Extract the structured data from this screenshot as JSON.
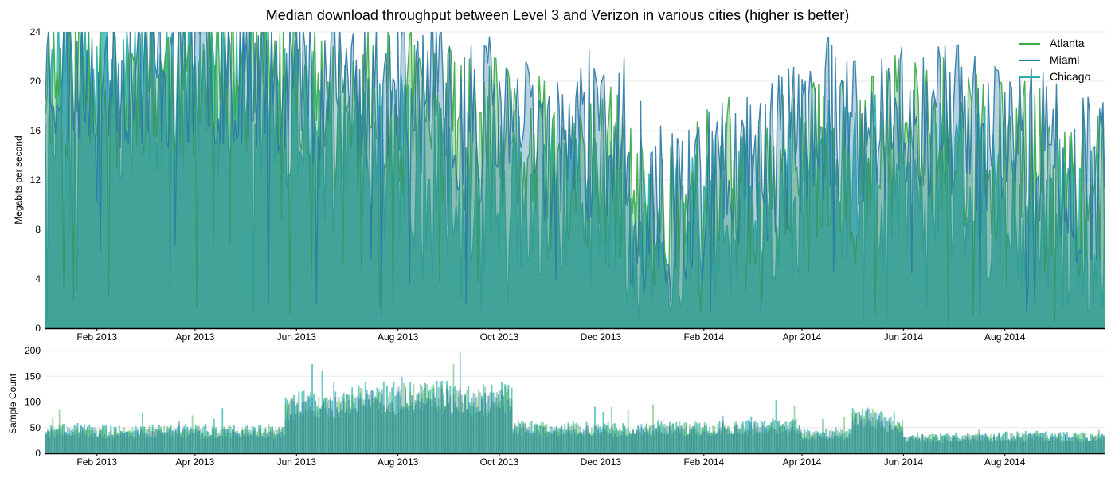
{
  "chart_data": [
    {
      "type": "area",
      "title": "Median download throughput between Level 3 and Verizon in various cities (higher is better)",
      "xlabel": "",
      "ylabel": "Megabits per second",
      "ylim": [
        0,
        24
      ],
      "yticks": [
        0,
        4,
        8,
        12,
        16,
        20,
        24
      ],
      "xlim": [
        "2013-01-01",
        "2014-09-30"
      ],
      "xticks": [
        {
          "date": "2013-02-01",
          "label": "Feb 2013"
        },
        {
          "date": "2013-04-01",
          "label": "Apr 2013"
        },
        {
          "date": "2013-06-01",
          "label": "Jun 2013"
        },
        {
          "date": "2013-08-01",
          "label": "Aug 2013"
        },
        {
          "date": "2013-10-01",
          "label": "Oct 2013"
        },
        {
          "date": "2013-12-01",
          "label": "Dec 2013"
        },
        {
          "date": "2014-02-01",
          "label": "Feb 2014"
        },
        {
          "date": "2014-04-01",
          "label": "Apr 2014"
        },
        {
          "date": "2014-06-01",
          "label": "Jun 2014"
        },
        {
          "date": "2014-08-01",
          "label": "Aug 2014"
        }
      ],
      "grid": true,
      "legend_position": "top-right",
      "series": [
        {
          "name": "Atlanta",
          "color": "#3aa845",
          "x": [
            "2013-01-01",
            "2013-01-15",
            "2013-02-01",
            "2013-02-15",
            "2013-03-01",
            "2013-03-15",
            "2013-04-01",
            "2013-04-15",
            "2013-05-01",
            "2013-05-15",
            "2013-06-01",
            "2013-06-15",
            "2013-07-01",
            "2013-07-15",
            "2013-08-01",
            "2013-08-15",
            "2013-09-01",
            "2013-09-15",
            "2013-10-01",
            "2013-10-15",
            "2013-11-01",
            "2013-11-15",
            "2013-12-01",
            "2013-12-15",
            "2014-01-01",
            "2014-01-15",
            "2014-02-01",
            "2014-02-15",
            "2014-03-01",
            "2014-03-15",
            "2014-04-01",
            "2014-04-15",
            "2014-05-01",
            "2014-05-15",
            "2014-06-01",
            "2014-06-15",
            "2014-07-01",
            "2014-07-15",
            "2014-08-01",
            "2014-08-15",
            "2014-09-01",
            "2014-09-15"
          ],
          "y": [
            21,
            20,
            22,
            19,
            21,
            20,
            21,
            20,
            21,
            20,
            19,
            18,
            17,
            18,
            17,
            18,
            16,
            15,
            15,
            14,
            13,
            12,
            13,
            12,
            8,
            10,
            11,
            12,
            11,
            12,
            13,
            14,
            13,
            14,
            16,
            15,
            15,
            14,
            14,
            13,
            12,
            11
          ]
        },
        {
          "name": "Miami",
          "color": "#2d7aa5",
          "x": [
            "2013-01-01",
            "2013-01-15",
            "2013-02-01",
            "2013-02-15",
            "2013-03-01",
            "2013-03-15",
            "2013-04-01",
            "2013-04-15",
            "2013-05-01",
            "2013-05-15",
            "2013-06-01",
            "2013-06-15",
            "2013-07-01",
            "2013-07-15",
            "2013-08-01",
            "2013-08-15",
            "2013-09-01",
            "2013-09-15",
            "2013-10-01",
            "2013-10-15",
            "2013-11-01",
            "2013-11-15",
            "2013-12-01",
            "2013-12-15",
            "2014-01-01",
            "2014-01-15",
            "2014-02-01",
            "2014-02-15",
            "2014-03-01",
            "2014-03-15",
            "2014-04-01",
            "2014-04-15",
            "2014-05-01",
            "2014-05-15",
            "2014-06-01",
            "2014-06-15",
            "2014-07-01",
            "2014-07-15",
            "2014-08-01",
            "2014-08-15",
            "2014-09-01",
            "2014-09-15"
          ],
          "y": [
            22,
            21,
            22,
            21,
            22,
            21,
            22,
            21,
            22,
            21,
            21,
            20,
            20,
            19,
            20,
            19,
            18,
            17,
            17,
            16,
            15,
            15,
            16,
            15,
            9,
            11,
            12,
            13,
            13,
            14,
            16,
            17,
            15,
            16,
            18,
            17,
            17,
            16,
            17,
            15,
            14,
            12
          ]
        },
        {
          "name": "Chicago",
          "color": "#2bb0ac",
          "x": [
            "2013-01-01",
            "2013-01-15",
            "2013-02-01",
            "2013-02-15",
            "2013-03-01",
            "2013-03-15",
            "2013-04-01",
            "2013-04-15",
            "2013-05-01",
            "2013-05-15",
            "2013-06-01",
            "2013-06-15",
            "2013-07-01",
            "2013-07-15",
            "2013-08-01",
            "2013-08-15",
            "2013-09-01",
            "2013-09-15",
            "2013-10-01",
            "2013-10-15",
            "2013-11-01",
            "2013-11-15",
            "2013-12-01",
            "2013-12-15",
            "2014-01-01",
            "2014-01-15",
            "2014-02-01",
            "2014-02-15",
            "2014-03-01",
            "2014-03-15",
            "2014-04-01",
            "2014-04-15",
            "2014-05-01",
            "2014-05-15",
            "2014-06-01",
            "2014-06-15",
            "2014-07-01",
            "2014-07-15",
            "2014-08-01",
            "2014-08-15",
            "2014-09-01",
            "2014-09-15"
          ],
          "y": [
            20,
            19,
            21,
            18,
            20,
            19,
            20,
            19,
            20,
            19,
            17,
            15,
            14,
            13,
            14,
            13,
            12,
            12,
            12,
            11,
            10,
            10,
            10,
            9,
            7,
            8,
            9,
            9,
            9,
            10,
            11,
            12,
            11,
            12,
            13,
            12,
            12,
            11,
            11,
            10,
            9,
            8
          ]
        }
      ]
    },
    {
      "type": "bar",
      "title": "",
      "xlabel": "",
      "ylabel": "Sample Count",
      "ylim": [
        0,
        200
      ],
      "yticks": [
        0,
        50,
        100,
        150,
        200
      ],
      "xlim": [
        "2013-01-01",
        "2014-09-30"
      ],
      "xticks": [
        {
          "date": "2013-02-01",
          "label": "Feb 2013"
        },
        {
          "date": "2013-04-01",
          "label": "Apr 2013"
        },
        {
          "date": "2013-06-01",
          "label": "Jun 2013"
        },
        {
          "date": "2013-08-01",
          "label": "Aug 2013"
        },
        {
          "date": "2013-10-01",
          "label": "Oct 2013"
        },
        {
          "date": "2013-12-01",
          "label": "Dec 2013"
        },
        {
          "date": "2014-02-01",
          "label": "Feb 2014"
        },
        {
          "date": "2014-04-01",
          "label": "Apr 2014"
        },
        {
          "date": "2014-06-01",
          "label": "Jun 2014"
        },
        {
          "date": "2014-08-01",
          "label": "Aug 2014"
        }
      ],
      "grid": true,
      "series": [
        {
          "name": "Atlanta",
          "color": "#3aa845",
          "x": [
            "2013-01-01",
            "2013-02-01",
            "2013-03-01",
            "2013-04-01",
            "2013-05-01",
            "2013-05-25",
            "2013-06-01",
            "2013-07-01",
            "2013-08-01",
            "2013-09-01",
            "2013-10-01",
            "2013-10-09",
            "2013-11-01",
            "2013-12-01",
            "2014-01-01",
            "2014-02-01",
            "2014-03-01",
            "2014-04-01",
            "2014-05-01",
            "2014-05-20",
            "2014-06-01",
            "2014-07-01",
            "2014-08-01",
            "2014-09-01"
          ],
          "y": [
            45,
            43,
            44,
            43,
            42,
            88,
            92,
            105,
            110,
            105,
            108,
            50,
            48,
            47,
            50,
            50,
            52,
            38,
            70,
            60,
            30,
            31,
            33,
            32
          ]
        },
        {
          "name": "Miami",
          "color": "#2d7aa5",
          "x": [
            "2013-01-01",
            "2013-02-01",
            "2013-03-01",
            "2013-04-01",
            "2013-05-01",
            "2013-05-25",
            "2013-06-01",
            "2013-07-01",
            "2013-08-01",
            "2013-09-01",
            "2013-10-01",
            "2013-10-09",
            "2013-11-01",
            "2013-12-01",
            "2014-01-01",
            "2014-02-01",
            "2014-03-01",
            "2014-04-01",
            "2014-05-01",
            "2014-05-20",
            "2014-06-01",
            "2014-07-01",
            "2014-08-01",
            "2014-09-01"
          ],
          "y": [
            42,
            40,
            41,
            40,
            40,
            85,
            90,
            100,
            105,
            100,
            104,
            47,
            45,
            45,
            47,
            48,
            49,
            36,
            68,
            58,
            29,
            30,
            32,
            30
          ]
        },
        {
          "name": "Chicago",
          "color": "#2bb0ac",
          "x": [
            "2013-01-01",
            "2013-02-01",
            "2013-03-01",
            "2013-04-01",
            "2013-05-01",
            "2013-05-25",
            "2013-06-01",
            "2013-07-01",
            "2013-08-01",
            "2013-09-01",
            "2013-10-01",
            "2013-10-09",
            "2013-11-01",
            "2013-12-01",
            "2014-01-01",
            "2014-02-01",
            "2014-03-01",
            "2014-04-01",
            "2014-05-01",
            "2014-05-20",
            "2014-06-01",
            "2014-07-01",
            "2014-08-01",
            "2014-09-01"
          ],
          "y": [
            48,
            45,
            46,
            45,
            44,
            92,
            98,
            112,
            118,
            110,
            112,
            52,
            50,
            49,
            52,
            52,
            54,
            40,
            72,
            62,
            32,
            33,
            35,
            34
          ]
        }
      ]
    }
  ]
}
